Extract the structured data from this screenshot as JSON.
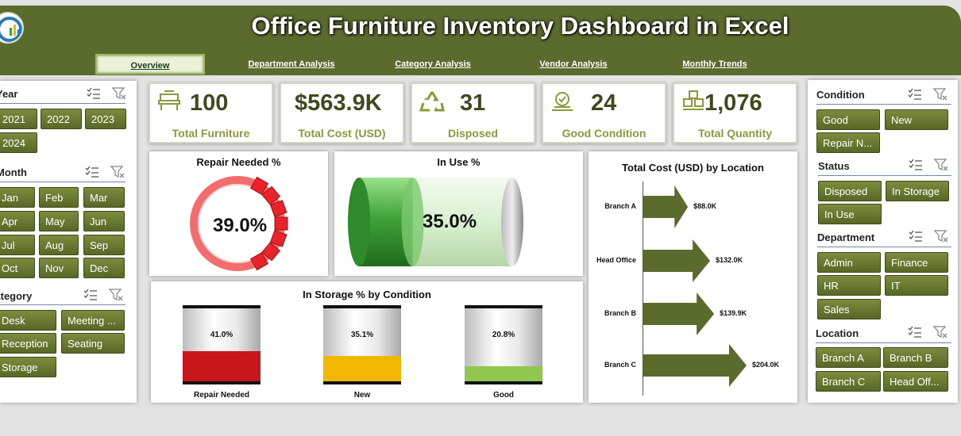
{
  "header": {
    "title": "Office Furniture Inventory Dashboard in Excel",
    "nav": [
      "Overview",
      "Department Analysis",
      "Category Analysis",
      "Vendor Analysis",
      "Monthly Trends"
    ]
  },
  "left_slicers": {
    "year": {
      "title": "Year",
      "items": [
        "2021",
        "2022",
        "2023",
        "2024"
      ]
    },
    "month": {
      "title": "Month",
      "items": [
        "Jan",
        "Feb",
        "Mar",
        "Apr",
        "May",
        "Jun",
        "Jul",
        "Aug",
        "Sep",
        "Oct",
        "Nov",
        "Dec"
      ]
    },
    "category": {
      "title": "Category",
      "items": [
        "Desk",
        "Meeting ...",
        "Reception",
        "Seating",
        "Storage"
      ]
    }
  },
  "right_slicers": {
    "condition": {
      "title": "Condition",
      "items": [
        "Good",
        "New",
        "Repair N..."
      ]
    },
    "status": {
      "title": "Status",
      "items": [
        "Disposed",
        "In Storage",
        "In Use"
      ]
    },
    "department": {
      "title": "Department",
      "items": [
        "Admin",
        "Finance",
        "HR",
        "IT",
        "Sales"
      ]
    },
    "location": {
      "title": "Location",
      "items": [
        "Branch A",
        "Branch B",
        "Branch C",
        "Head Off..."
      ]
    }
  },
  "kpis": [
    {
      "value": "100",
      "label": "Total Furniture",
      "icon": "furniture-icon"
    },
    {
      "value": "$563.9K",
      "label": "Total Cost (USD)",
      "icon": "none"
    },
    {
      "value": "31",
      "label": "Disposed",
      "icon": "recycle-icon"
    },
    {
      "value": "24",
      "label": "Good Condition",
      "icon": "quality-badge-icon"
    },
    {
      "value": "1,076",
      "label": "Total Quantity",
      "icon": "boxes-icon"
    }
  ],
  "colors": {
    "accent": "#5b6b2e",
    "button": "#6b7b32",
    "kpi_label": "#8a9a3a",
    "repair": "#e8232b",
    "in_use": "#3fa33a"
  },
  "chart_data": [
    {
      "type": "gauge",
      "title": "Repair Needed %",
      "value": 0.39,
      "label": "39.0%"
    },
    {
      "type": "cylinder",
      "title": "In Use %",
      "value": 0.35,
      "label": "35.0%"
    },
    {
      "type": "bar",
      "title": "In Storage % by Condition",
      "categories": [
        "Repair Needed",
        "New",
        "Good"
      ],
      "values": [
        41.0,
        35.1,
        20.8
      ],
      "labels": [
        "41.0%",
        "35.1%",
        "20.8%"
      ],
      "colors": [
        "#c8161d",
        "#f2b705",
        "#8fc74f"
      ]
    },
    {
      "type": "bar",
      "orientation": "horizontal",
      "title": "Total Cost (USD) by Location",
      "categories": [
        "Branch A",
        "Head Office",
        "Branch B",
        "Branch C"
      ],
      "values": [
        88.0,
        132.0,
        139.9,
        204.0
      ],
      "labels": [
        "$88.0K",
        "$132.0K",
        "$139.9K",
        "$204.0K"
      ]
    }
  ]
}
